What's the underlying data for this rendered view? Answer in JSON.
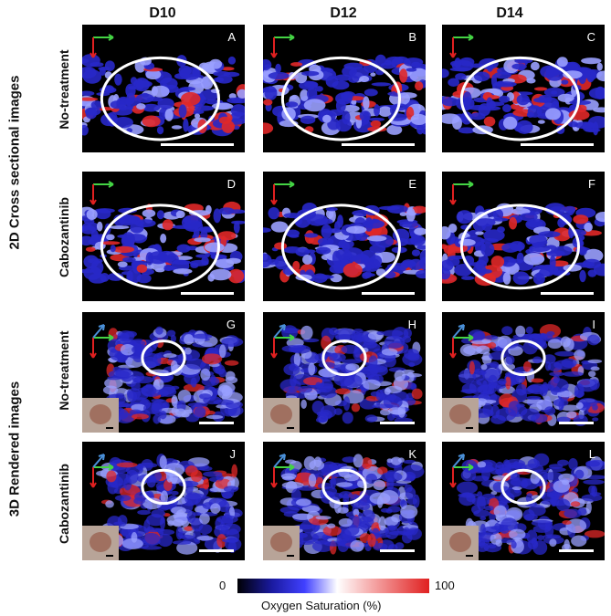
{
  "columns": [
    "D10",
    "D12",
    "D14"
  ],
  "group_labels": [
    "2D Cross sectional images",
    "3D Rendered images"
  ],
  "row_labels": [
    "No-treatment",
    "Cabozantinib",
    "No-treatment",
    "Cabozantinib"
  ],
  "panel_letters": [
    "A",
    "B",
    "C",
    "D",
    "E",
    "F",
    "G",
    "H",
    "I",
    "J",
    "K",
    "L"
  ],
  "colorbar": {
    "min_label": "0",
    "max_label": "100",
    "title": "Oxygen Saturation (%)",
    "colors": [
      "#000004",
      "#1a1aa0",
      "#4040ff",
      "#ffffff",
      "#f4a0a0",
      "#e02020"
    ]
  },
  "panel_colors": {
    "background": "#000000",
    "tissue": "#2828c8",
    "tissue_light": "#9aa0ff",
    "hot": "#e02828",
    "outline": "#ffffff",
    "x_arrow": "#44d444",
    "y_arrow": "#e02020",
    "z_arrow": "#4a90d9"
  }
}
